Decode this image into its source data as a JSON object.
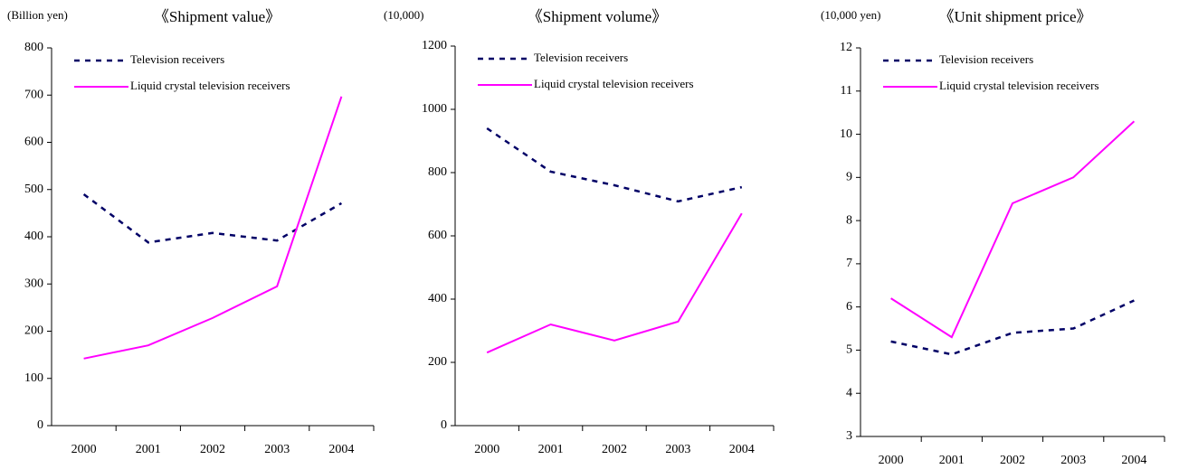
{
  "chart_data": [
    {
      "type": "line",
      "title": "《Shipment value》",
      "ylabel": "(Billion yen)",
      "categories": [
        "2000",
        "2001",
        "2002",
        "2003",
        "2004"
      ],
      "series": [
        {
          "name": "Television receivers",
          "color": "#000066",
          "dash": true,
          "values": [
            490,
            388,
            408,
            392,
            471
          ]
        },
        {
          "name": "Liquid crystal television receivers",
          "color": "#ff00ff",
          "dash": false,
          "values": [
            142,
            170,
            228,
            295,
            697
          ]
        }
      ],
      "ylim": [
        0,
        800
      ],
      "yticks": [
        0,
        100,
        200,
        300,
        400,
        500,
        600,
        700,
        800
      ],
      "legend": "upper left",
      "grid": false
    },
    {
      "type": "line",
      "title": "《Shipment volume》",
      "ylabel": "(10,000)",
      "categories": [
        "2000",
        "2001",
        "2002",
        "2003",
        "2004"
      ],
      "series": [
        {
          "name": "Television receivers",
          "color": "#000066",
          "dash": true,
          "values": [
            940,
            803,
            760,
            709,
            754
          ]
        },
        {
          "name": "Liquid crystal television receivers",
          "color": "#ff00ff",
          "dash": false,
          "values": [
            231,
            320,
            269,
            329,
            671
          ]
        }
      ],
      "ylim": [
        0,
        1200
      ],
      "yticks": [
        0,
        200,
        400,
        600,
        800,
        1000,
        1200
      ],
      "legend": "upper left",
      "grid": false
    },
    {
      "type": "line",
      "title": "《Unit shipment price》",
      "ylabel": "(10,000 yen)",
      "categories": [
        "2000",
        "2001",
        "2002",
        "2003",
        "2004"
      ],
      "series": [
        {
          "name": "Television receivers",
          "color": "#000066",
          "dash": true,
          "values": [
            5.2,
            4.9,
            5.4,
            5.5,
            6.15
          ]
        },
        {
          "name": "Liquid crystal television receivers",
          "color": "#ff00ff",
          "dash": false,
          "values": [
            6.2,
            5.3,
            8.4,
            9.0,
            10.3
          ]
        }
      ],
      "ylim": [
        3,
        12
      ],
      "yticks": [
        3,
        4,
        5,
        6,
        7,
        8,
        9,
        10,
        11,
        12
      ],
      "legend": "upper left",
      "grid": false
    }
  ]
}
